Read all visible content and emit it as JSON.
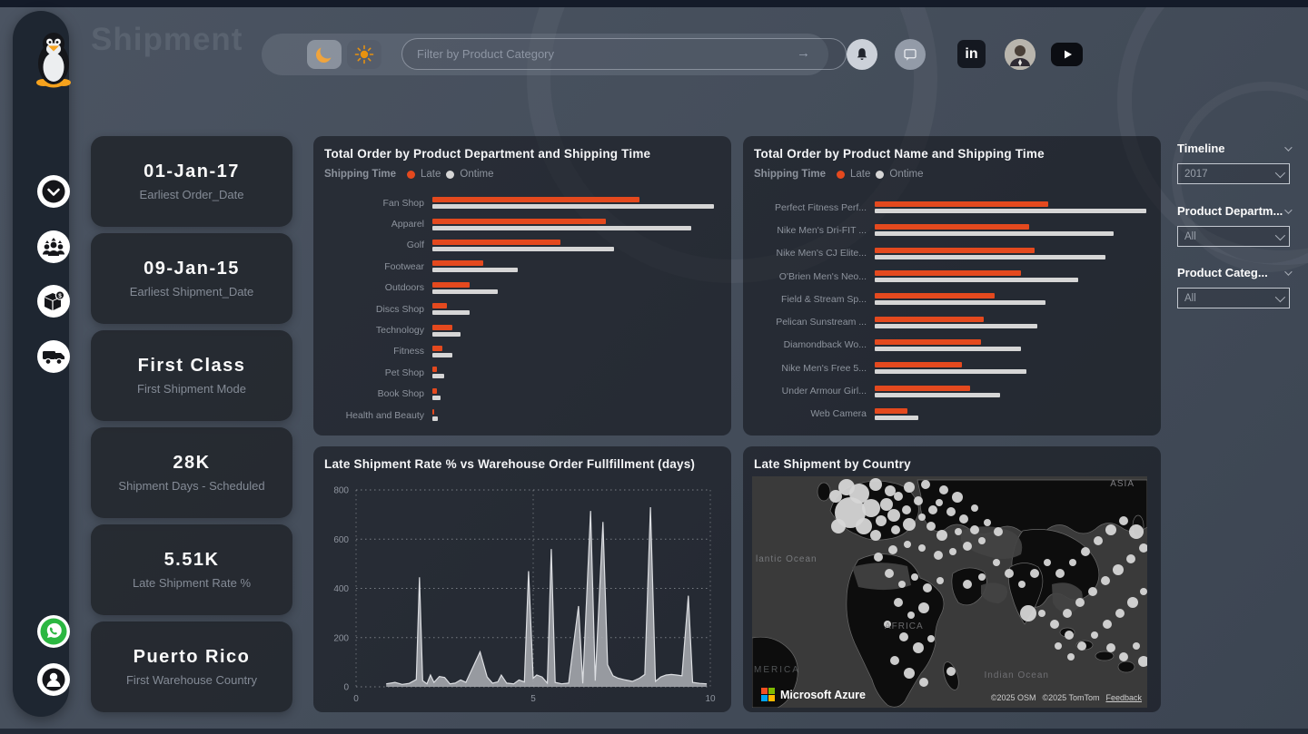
{
  "app": {
    "title": "Shipment"
  },
  "topbar": {
    "search": {
      "placeholder": "Filter by Product Category",
      "submit_icon": "→"
    },
    "linkedin_label": "in"
  },
  "sidebar": {
    "logo": "linux-tux",
    "nav_icons": [
      "chevron-circle",
      "customers-group",
      "product-box-dollar",
      "delivery-truck"
    ],
    "footer_icons": [
      "whatsapp",
      "contact-person"
    ]
  },
  "kpis": [
    {
      "value": "01-Jan-17",
      "label": "Earliest Order_Date"
    },
    {
      "value": "09-Jan-15",
      "label": "Earliest Shipment_Date"
    },
    {
      "value": "First Class",
      "label": "First Shipment Mode"
    },
    {
      "value": "28K",
      "label": "Shipment Days - Scheduled"
    },
    {
      "value": "5.51K",
      "label": "Late Shipment Rate %"
    },
    {
      "value": "Puerto Rico",
      "label": "First Warehouse Country"
    }
  ],
  "slicers": [
    {
      "label": "Timeline",
      "value": "2017"
    },
    {
      "label": "Product Departm...",
      "value": "All"
    },
    {
      "label": "Product Categ...",
      "value": "All"
    }
  ],
  "colors": {
    "late": "#E4491E",
    "ontime": "#D6D6D6",
    "accent_orange": "#F0A43C",
    "area_fill": "#A7AAAF",
    "bubble": "#D6D6D6"
  },
  "chart_data": [
    {
      "type": "bar",
      "title": "Total Order by Product Department and Shipping Time",
      "legend": {
        "title": "Shipping Time",
        "items": [
          "Late",
          "Ontime"
        ]
      },
      "orientation": "horizontal",
      "value_scale": "% of hidden value axis (estimated)",
      "categories": [
        "Fan Shop",
        "Apparel",
        "Golf",
        "Footwear",
        "Outdoors",
        "Discs Shop",
        "Technology",
        "Fitness",
        "Pet Shop",
        "Book Shop",
        "Health and Beauty"
      ],
      "series": [
        {
          "name": "Late",
          "values": [
            73,
            61,
            45,
            18,
            13,
            5,
            7,
            3.5,
            1.6,
            1.6,
            0.7
          ]
        },
        {
          "name": "Ontime",
          "values": [
            99,
            91,
            64,
            30,
            23,
            13,
            10,
            7,
            4,
            3,
            2
          ]
        }
      ]
    },
    {
      "type": "bar",
      "title": "Total Order by Product Name and Shipping Time",
      "legend": {
        "title": "Shipping Time",
        "items": [
          "Late",
          "Ontime"
        ]
      },
      "orientation": "horizontal",
      "value_scale": "% of hidden value axis (estimated)",
      "categories": [
        "Perfect Fitness Perf...",
        "Nike Men's Dri-FIT ...",
        "Nike Men's CJ Elite...",
        "O'Brien Men's Neo...",
        "Field & Stream Sp...",
        "Pelican Sunstream ...",
        "Diamondback Wo...",
        "Nike Men's Free 5...",
        "Under Armour Girl...",
        "Web Camera"
      ],
      "series": [
        {
          "name": "Late",
          "values": [
            64,
            57,
            59,
            54,
            44,
            40,
            39,
            32,
            35,
            12
          ]
        },
        {
          "name": "Ontime",
          "values": [
            100,
            88,
            85,
            75,
            63,
            60,
            54,
            56,
            46,
            16
          ]
        }
      ]
    },
    {
      "type": "area",
      "title": "Late Shipment Rate % vs Warehouse Order Fullfillment (days)",
      "xlabel": "Warehouse Order Fullfillment (days)",
      "ylabel": "Late Shipment Rate %",
      "xlim": [
        0,
        10
      ],
      "ylim": [
        0,
        800
      ],
      "xticks": [
        0,
        5,
        10
      ],
      "yticks": [
        0,
        200,
        400,
        600,
        800
      ],
      "grid": "dotted",
      "points": [
        [
          0.85,
          12
        ],
        [
          1.1,
          18
        ],
        [
          1.3,
          10
        ],
        [
          1.5,
          14
        ],
        [
          1.7,
          30
        ],
        [
          1.79,
          445
        ],
        [
          1.88,
          25
        ],
        [
          2.0,
          12
        ],
        [
          2.1,
          48
        ],
        [
          2.2,
          18
        ],
        [
          2.35,
          42
        ],
        [
          2.5,
          38
        ],
        [
          2.65,
          12
        ],
        [
          2.8,
          15
        ],
        [
          2.95,
          28
        ],
        [
          3.1,
          18
        ],
        [
          3.3,
          80
        ],
        [
          3.5,
          142
        ],
        [
          3.7,
          40
        ],
        [
          3.85,
          15
        ],
        [
          4.0,
          20
        ],
        [
          4.1,
          48
        ],
        [
          4.25,
          15
        ],
        [
          4.45,
          12
        ],
        [
          4.6,
          28
        ],
        [
          4.75,
          20
        ],
        [
          4.87,
          470
        ],
        [
          5.0,
          35
        ],
        [
          5.1,
          48
        ],
        [
          5.25,
          40
        ],
        [
          5.4,
          15
        ],
        [
          5.51,
          560
        ],
        [
          5.62,
          18
        ],
        [
          5.8,
          12
        ],
        [
          6.0,
          15
        ],
        [
          6.28,
          328
        ],
        [
          6.4,
          14
        ],
        [
          6.62,
          715
        ],
        [
          6.75,
          25
        ],
        [
          6.97,
          670
        ],
        [
          7.1,
          90
        ],
        [
          7.25,
          45
        ],
        [
          7.4,
          35
        ],
        [
          7.6,
          28
        ],
        [
          7.8,
          22
        ],
        [
          8.0,
          35
        ],
        [
          8.15,
          50
        ],
        [
          8.31,
          730
        ],
        [
          8.45,
          22
        ],
        [
          8.6,
          40
        ],
        [
          8.75,
          48
        ],
        [
          8.9,
          50
        ],
        [
          9.05,
          48
        ],
        [
          9.2,
          45
        ],
        [
          9.38,
          370
        ],
        [
          9.5,
          18
        ],
        [
          9.7,
          14
        ],
        [
          9.9,
          12
        ]
      ]
    },
    {
      "type": "map-bubble",
      "title": "Late Shipment by Country",
      "provider": "Microsoft Azure",
      "region_labels": {
        "asia": "ASIA",
        "africa": "AFRICA",
        "atlantic": "lantic Ocean",
        "indian": "Indian Ocean",
        "america": "MERICA"
      },
      "attribution": {
        "osm": "©2025 OSM",
        "tomtom": "©2025 TomTom",
        "feedback": "Feedback"
      },
      "bubbles": [
        [
          104,
          12,
          9
        ],
        [
          92,
          22,
          7
        ],
        [
          118,
          19,
          11
        ],
        [
          136,
          9,
          7
        ],
        [
          152,
          16,
          6
        ],
        [
          108,
          40,
          17
        ],
        [
          131,
          35,
          10
        ],
        [
          148,
          31,
          7
        ],
        [
          161,
          22,
          5
        ],
        [
          173,
          12,
          6
        ],
        [
          95,
          55,
          8
        ],
        [
          123,
          55,
          9
        ],
        [
          142,
          49,
          6
        ],
        [
          156,
          43,
          7
        ],
        [
          170,
          37,
          5
        ],
        [
          183,
          27,
          5
        ],
        [
          136,
          65,
          6
        ],
        [
          158,
          59,
          5
        ],
        [
          173,
          53,
          7
        ],
        [
          187,
          45,
          4
        ],
        [
          199,
          37,
          5
        ],
        [
          191,
          9,
          5
        ],
        [
          211,
          15,
          5
        ],
        [
          226,
          23,
          6
        ],
        [
          206,
          29,
          4
        ],
        [
          219,
          39,
          5
        ],
        [
          233,
          47,
          5
        ],
        [
          245,
          35,
          4
        ],
        [
          197,
          55,
          5
        ],
        [
          209,
          65,
          6
        ],
        [
          227,
          61,
          4
        ],
        [
          245,
          59,
          5
        ],
        [
          259,
          51,
          4
        ],
        [
          271,
          61,
          5
        ],
        [
          253,
          71,
          4
        ],
        [
          237,
          77,
          5
        ],
        [
          221,
          83,
          4
        ],
        [
          205,
          87,
          5
        ],
        [
          187,
          79,
          4
        ],
        [
          171,
          75,
          4
        ],
        [
          155,
          81,
          5
        ],
        [
          139,
          89,
          5
        ],
        [
          151,
          107,
          5
        ],
        [
          165,
          119,
          4
        ],
        [
          179,
          111,
          4
        ],
        [
          193,
          123,
          5
        ],
        [
          207,
          115,
          4
        ],
        [
          237,
          119,
          5
        ],
        [
          253,
          111,
          4
        ],
        [
          161,
          139,
          5
        ],
        [
          175,
          153,
          4
        ],
        [
          189,
          145,
          6
        ],
        [
          149,
          163,
          4
        ],
        [
          167,
          177,
          5
        ],
        [
          183,
          189,
          6
        ],
        [
          197,
          179,
          4
        ],
        [
          157,
          203,
          5
        ],
        [
          173,
          217,
          6
        ],
        [
          189,
          227,
          5
        ],
        [
          219,
          215,
          5
        ],
        [
          269,
          95,
          4
        ],
        [
          283,
          107,
          5
        ],
        [
          297,
          119,
          4
        ],
        [
          311,
          107,
          5
        ],
        [
          325,
          95,
          4
        ],
        [
          339,
          107,
          5
        ],
        [
          353,
          95,
          4
        ],
        [
          367,
          83,
          5
        ],
        [
          381,
          71,
          5
        ],
        [
          395,
          59,
          6
        ],
        [
          409,
          49,
          5
        ],
        [
          423,
          61,
          8
        ],
        [
          431,
          79,
          5
        ],
        [
          417,
          91,
          5
        ],
        [
          403,
          103,
          6
        ],
        [
          389,
          115,
          5
        ],
        [
          375,
          127,
          5
        ],
        [
          361,
          139,
          5
        ],
        [
          347,
          151,
          5
        ],
        [
          333,
          163,
          5
        ],
        [
          319,
          151,
          4
        ],
        [
          304,
          151,
          9
        ],
        [
          349,
          175,
          5
        ],
        [
          363,
          187,
          5
        ],
        [
          377,
          175,
          4
        ],
        [
          391,
          163,
          5
        ],
        [
          405,
          151,
          5
        ],
        [
          419,
          139,
          6
        ],
        [
          431,
          127,
          4
        ],
        [
          395,
          189,
          5
        ],
        [
          409,
          199,
          5
        ],
        [
          423,
          187,
          4
        ],
        [
          431,
          204,
          6
        ],
        [
          351,
          199,
          4
        ],
        [
          337,
          187,
          4
        ]
      ]
    }
  ]
}
